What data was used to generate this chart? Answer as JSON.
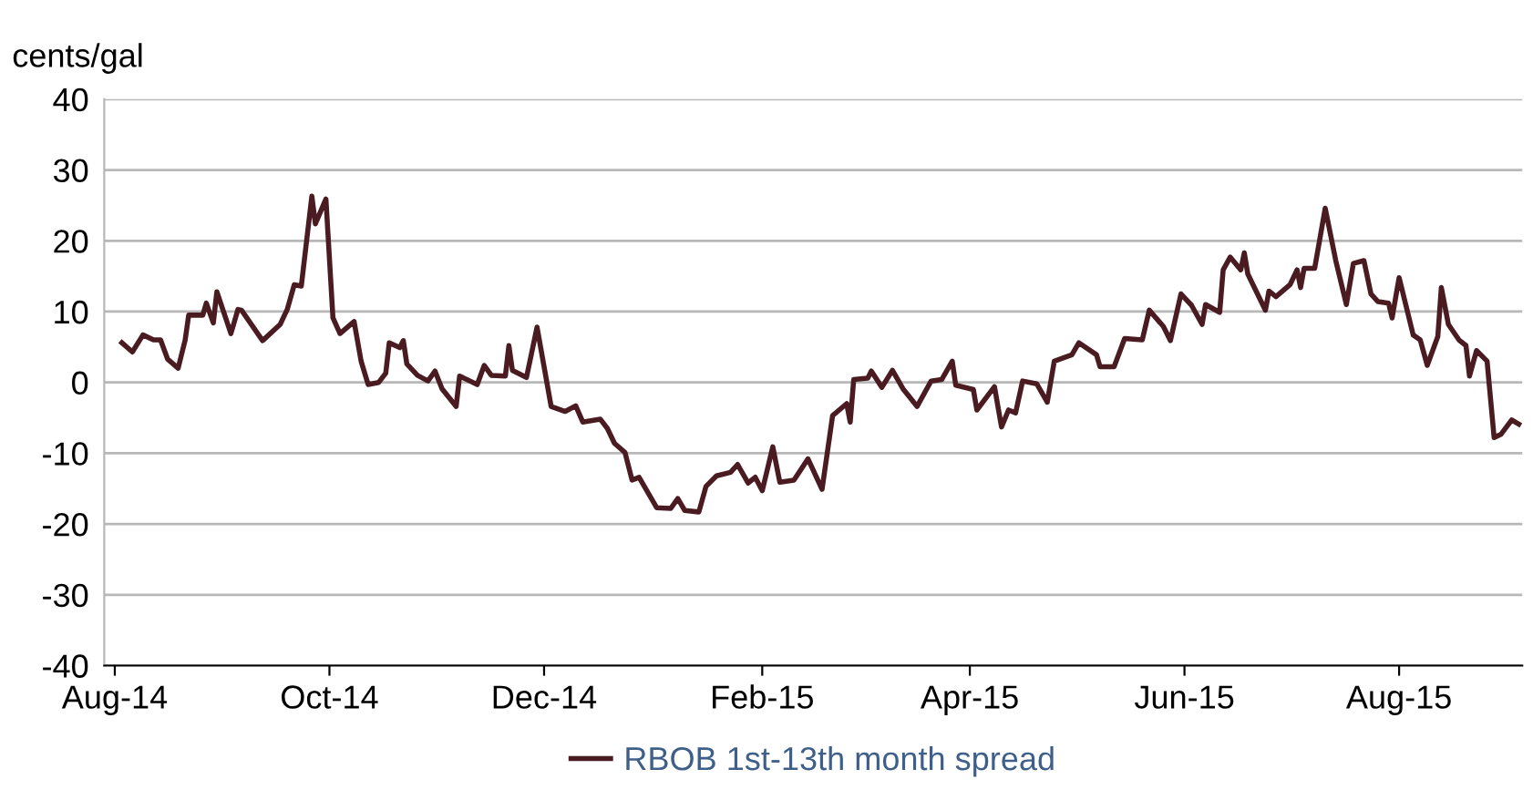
{
  "chart_data": {
    "type": "line",
    "ylabel": "cents/gal",
    "legend": "bottom",
    "grid": "y",
    "marker": "none",
    "line_style": "solid",
    "xlim": [
      "2014-07-29",
      "2015-09-05"
    ],
    "ylim": [
      -40,
      40
    ],
    "yticks": [
      -40,
      -30,
      -20,
      -10,
      0,
      10,
      20,
      30,
      40
    ],
    "xticks": [
      {
        "value": "2014-08-01",
        "label": "Aug-14"
      },
      {
        "value": "2014-10-01",
        "label": "Oct-14"
      },
      {
        "value": "2014-12-01",
        "label": "Dec-14"
      },
      {
        "value": "2015-02-01",
        "label": "Feb-15"
      },
      {
        "value": "2015-04-01",
        "label": "Apr-15"
      },
      {
        "value": "2015-06-01",
        "label": "Jun-15"
      },
      {
        "value": "2015-08-01",
        "label": "Aug-15"
      }
    ],
    "x": [
      "2014-08-03",
      "2014-08-06",
      "2014-08-09",
      "2014-08-12",
      "2014-08-14",
      "2014-08-16",
      "2014-08-19",
      "2014-08-21",
      "2014-08-22",
      "2014-08-26",
      "2014-08-27",
      "2014-08-29",
      "2014-08-30",
      "2014-09-03",
      "2014-09-05",
      "2014-09-06",
      "2014-09-12",
      "2014-09-17",
      "2014-09-19",
      "2014-09-21",
      "2014-09-23",
      "2014-09-26",
      "2014-09-27",
      "2014-09-30",
      "2014-10-02",
      "2014-10-04",
      "2014-10-08",
      "2014-10-10",
      "2014-10-12",
      "2014-10-15",
      "2014-10-17",
      "2014-10-18",
      "2014-10-21",
      "2014-10-22",
      "2014-10-23",
      "2014-10-26",
      "2014-10-29",
      "2014-10-31",
      "2014-11-02",
      "2014-11-06",
      "2014-11-07",
      "2014-11-12",
      "2014-11-14",
      "2014-11-16",
      "2014-11-20",
      "2014-11-21",
      "2014-11-22",
      "2014-11-26",
      "2014-11-29",
      "2014-12-03",
      "2014-12-07",
      "2014-12-10",
      "2014-12-12",
      "2014-12-17",
      "2014-12-19",
      "2014-12-21",
      "2014-12-24",
      "2014-12-26",
      "2014-12-28",
      "2015-01-02",
      "2015-01-06",
      "2015-01-08",
      "2015-01-10",
      "2015-01-14",
      "2015-01-16",
      "2015-01-19",
      "2015-01-23",
      "2015-01-25",
      "2015-01-28",
      "2015-01-30",
      "2015-02-01",
      "2015-02-04",
      "2015-02-06",
      "2015-02-10",
      "2015-02-14",
      "2015-02-18",
      "2015-02-21",
      "2015-02-25",
      "2015-02-26",
      "2015-02-27",
      "2015-03-03",
      "2015-03-04",
      "2015-03-07",
      "2015-03-10",
      "2015-03-13",
      "2015-03-17",
      "2015-03-21",
      "2015-03-24",
      "2015-03-27",
      "2015-03-28",
      "2015-04-02",
      "2015-04-03",
      "2015-04-08",
      "2015-04-10",
      "2015-04-12",
      "2015-04-14",
      "2015-04-16",
      "2015-04-20",
      "2015-04-23",
      "2015-04-25",
      "2015-04-30",
      "2015-05-02",
      "2015-05-07",
      "2015-05-08",
      "2015-05-12",
      "2015-05-15",
      "2015-05-20",
      "2015-05-22",
      "2015-05-26",
      "2015-05-28",
      "2015-05-31",
      "2015-06-03",
      "2015-06-06",
      "2015-06-07",
      "2015-06-11",
      "2015-06-12",
      "2015-06-14",
      "2015-06-17",
      "2015-06-18",
      "2015-06-19",
      "2015-06-24",
      "2015-06-25",
      "2015-06-27",
      "2015-07-01",
      "2015-07-03",
      "2015-07-04",
      "2015-07-05",
      "2015-07-08",
      "2015-07-11",
      "2015-07-14",
      "2015-07-17",
      "2015-07-19",
      "2015-07-22",
      "2015-07-24",
      "2015-07-26",
      "2015-07-29",
      "2015-07-30",
      "2015-08-01",
      "2015-08-05",
      "2015-08-07",
      "2015-08-09",
      "2015-08-12",
      "2015-08-13",
      "2015-08-15",
      "2015-08-18",
      "2015-08-20",
      "2015-08-21",
      "2015-08-23",
      "2015-08-26",
      "2015-08-28",
      "2015-08-30",
      "2015-09-02",
      "2015-09-04"
    ],
    "series": [
      {
        "name": "RBOB 1st-13th month spread",
        "color": "#4a1c22",
        "values": [
          5.6,
          4.3,
          6.7,
          6.0,
          6.0,
          3.3,
          2.0,
          6.0,
          9.5,
          9.5,
          11.2,
          8.4,
          12.8,
          6.9,
          10.3,
          10.2,
          5.9,
          8.2,
          10.3,
          13.8,
          13.6,
          26.3,
          22.4,
          25.9,
          9.1,
          6.9,
          8.6,
          3.0,
          -0.3,
          0,
          1.3,
          5.6,
          4.9,
          5.9,
          2.6,
          1.0,
          0.2,
          1.6,
          -0.9,
          -3.4,
          0.9,
          -0.3,
          2.4,
          1.0,
          0.9,
          5.2,
          1.7,
          0.7,
          7.8,
          -3.4,
          -4.1,
          -3.3,
          -5.6,
          -5.2,
          -6.5,
          -8.6,
          -9.9,
          -13.8,
          -13.4,
          -17.7,
          -17.8,
          -16.4,
          -18.1,
          -18.3,
          -14.7,
          -13.2,
          -12.7,
          -11.6,
          -14.2,
          -13.4,
          -15.3,
          -9.1,
          -14.1,
          -13.8,
          -10.8,
          -15.1,
          -4.7,
          -3.0,
          -5.6,
          0.4,
          0.6,
          1.6,
          -0.7,
          1.7,
          -0.9,
          -3.4,
          0.2,
          0.4,
          3.0,
          -0.4,
          -1.0,
          -3.9,
          -0.6,
          -6.3,
          -3.9,
          -4.3,
          0.2,
          -0.2,
          -2.8,
          3.0,
          3.9,
          5.6,
          3.9,
          2.2,
          2.2,
          6.2,
          6.0,
          10.2,
          7.9,
          5.9,
          12.5,
          10.9,
          8.2,
          11.0,
          9.9,
          15.9,
          17.7,
          15.9,
          18.3,
          15.3,
          10.2,
          12.9,
          12.1,
          13.8,
          15.9,
          13.4,
          16.1,
          16.1,
          24.6,
          17.2,
          11.0,
          16.8,
          17.2,
          12.5,
          11.4,
          11.2,
          9.1,
          14.8,
          6.7,
          6.0,
          2.4,
          6.5,
          13.4,
          8.2,
          6.0,
          5.2,
          0.9,
          4.5,
          3.0,
          -7.8,
          -7.3,
          -5.3,
          -5.9
        ]
      }
    ]
  }
}
